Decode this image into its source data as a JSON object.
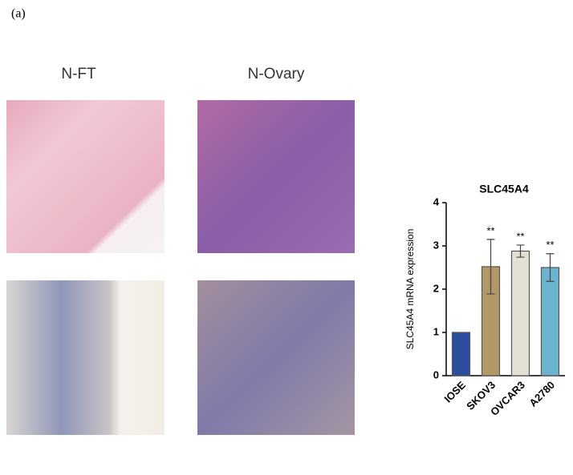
{
  "panel_label": "(a)",
  "images": [
    {
      "label": "N-FT"
    },
    {
      "label": "N-Ovary"
    }
  ],
  "chart_data": {
    "type": "bar",
    "title": "SLC45A4",
    "ylabel": "SLC45A4 mRNA expression",
    "categories": [
      "IOSE",
      "SKOV3",
      "OVCAR3",
      "A2780"
    ],
    "values": [
      1,
      2.52,
      2.88,
      2.5
    ],
    "errors": [
      0,
      0.63,
      0.14,
      0.32
    ],
    "significance": [
      null,
      "**",
      "**",
      "**"
    ],
    "colors": [
      "#2b4f9e",
      "#b39867",
      "#e3dfd3",
      "#6cb3cf"
    ],
    "ylim": [
      0,
      4
    ],
    "yticks": [
      0,
      1,
      2,
      3,
      4
    ]
  }
}
